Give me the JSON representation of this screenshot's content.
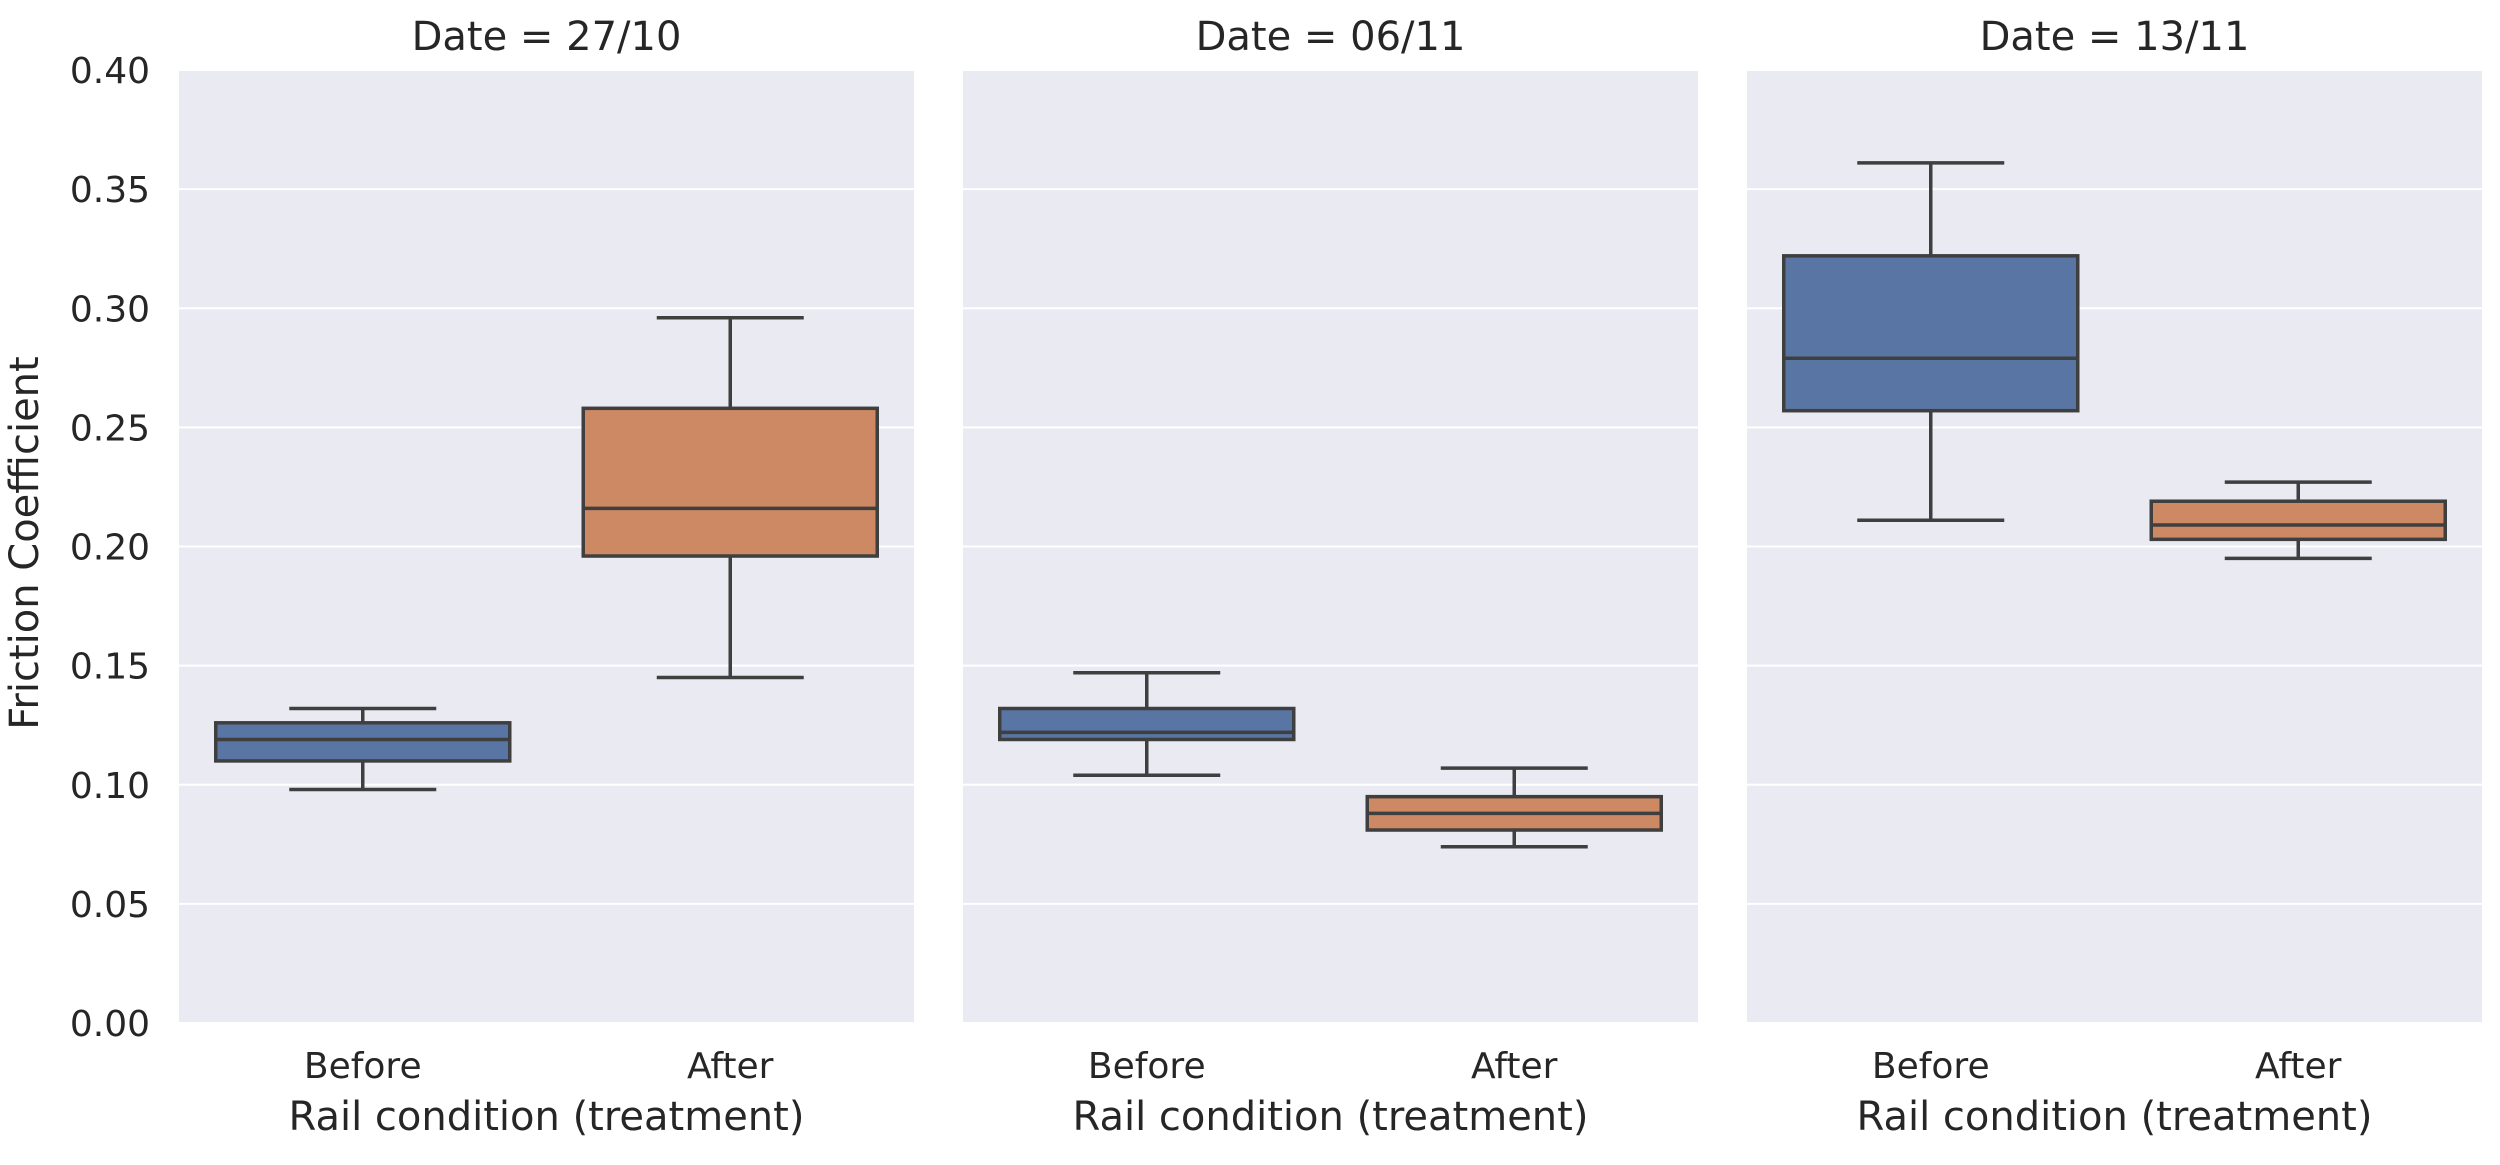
{
  "chart_data": {
    "type": "box",
    "ylabel": "Friction Coefficient",
    "ylim": [
      0,
      0.4
    ],
    "yticks": [
      0,
      0.05,
      0.1,
      0.15,
      0.2,
      0.25,
      0.3,
      0.35,
      0.4
    ],
    "ytick_labels": [
      "0.00",
      "0.05",
      "0.10",
      "0.15",
      "0.20",
      "0.25",
      "0.30",
      "0.35",
      "0.40"
    ],
    "grid": true,
    "colors": {
      "Before": "#5975a4",
      "After": "#cc8963",
      "panel_bg": "#eaeaf2",
      "grid": "#ffffff",
      "box_line": "#3f3f3f"
    },
    "categories": [
      "Before",
      "After"
    ],
    "panels": [
      {
        "title": "Date = 27/10",
        "xlabel": "Rail condition (treatment)",
        "boxes": [
          {
            "category": "Before",
            "whislo": 0.098,
            "q1": 0.11,
            "median": 0.119,
            "q3": 0.126,
            "whishi": 0.132
          },
          {
            "category": "After",
            "whislo": 0.145,
            "q1": 0.196,
            "median": 0.216,
            "q3": 0.258,
            "whishi": 0.296
          }
        ]
      },
      {
        "title": "Date = 06/11",
        "xlabel": "Rail condition (treatment)",
        "boxes": [
          {
            "category": "Before",
            "whislo": 0.104,
            "q1": 0.119,
            "median": 0.122,
            "q3": 0.132,
            "whishi": 0.147
          },
          {
            "category": "After",
            "whislo": 0.074,
            "q1": 0.081,
            "median": 0.088,
            "q3": 0.095,
            "whishi": 0.107
          }
        ]
      },
      {
        "title": "Date = 13/11",
        "xlabel": "Rail condition (treatment)",
        "boxes": [
          {
            "category": "Before",
            "whislo": 0.211,
            "q1": 0.257,
            "median": 0.279,
            "q3": 0.322,
            "whishi": 0.361
          },
          {
            "category": "After",
            "whislo": 0.195,
            "q1": 0.203,
            "median": 0.209,
            "q3": 0.219,
            "whishi": 0.227
          }
        ]
      }
    ]
  }
}
